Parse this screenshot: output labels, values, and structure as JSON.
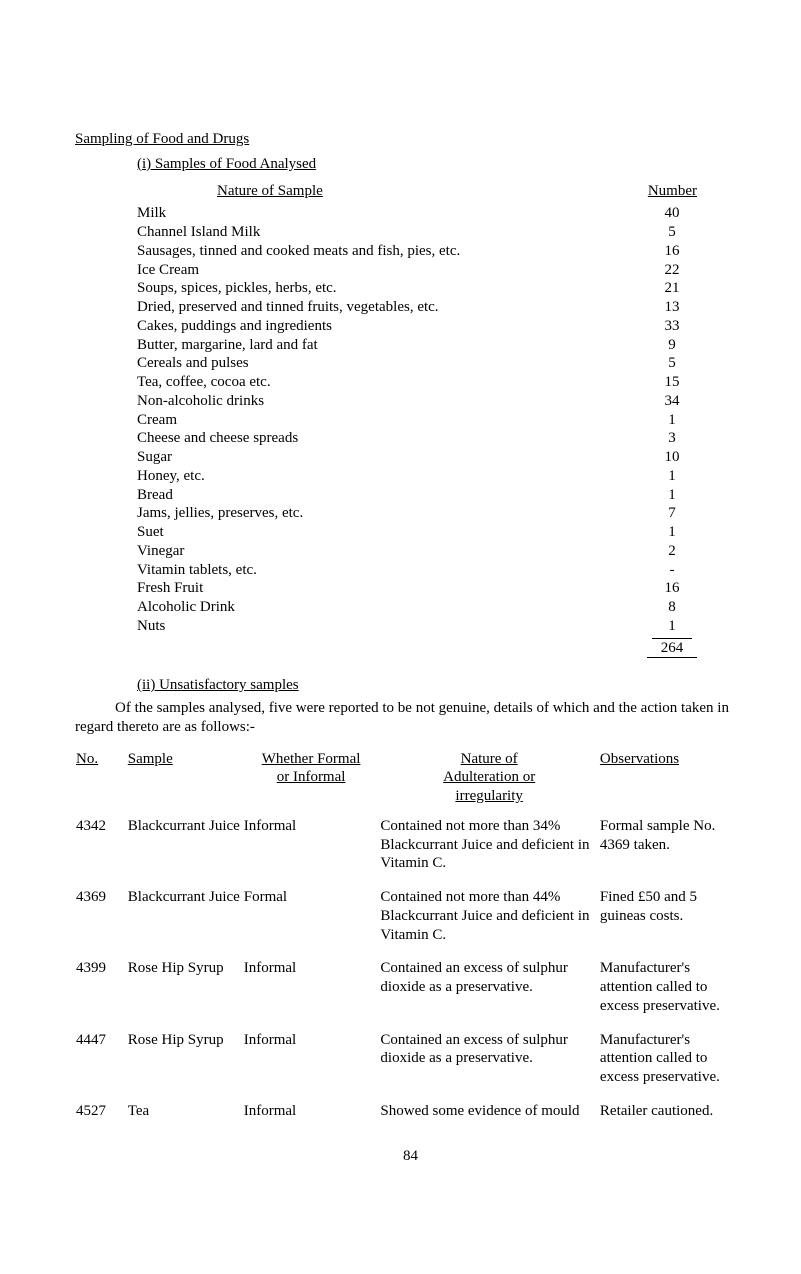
{
  "heading": "Sampling of Food and Drugs",
  "sub_i": "(i) Samples of Food Analysed",
  "table1_headers": {
    "nature": "Nature of Sample",
    "number": "Number"
  },
  "samples": [
    {
      "name": "Milk",
      "number": "40"
    },
    {
      "name": "Channel Island Milk",
      "number": "5"
    },
    {
      "name": "Sausages, tinned and cooked meats and fish, pies, etc.",
      "number": "16"
    },
    {
      "name": "Ice Cream",
      "number": "22"
    },
    {
      "name": "Soups, spices, pickles, herbs, etc.",
      "number": "21"
    },
    {
      "name": "Dried, preserved and tinned fruits, vegetables, etc.",
      "number": "13"
    },
    {
      "name": "Cakes, puddings and ingredients",
      "number": "33"
    },
    {
      "name": "Butter, margarine, lard and fat",
      "number": "9"
    },
    {
      "name": "Cereals and pulses",
      "number": "5"
    },
    {
      "name": "Tea, coffee, cocoa etc.",
      "number": "15"
    },
    {
      "name": "Non-alcoholic drinks",
      "number": "34"
    },
    {
      "name": "Cream",
      "number": "1"
    },
    {
      "name": "Cheese and cheese spreads",
      "number": "3"
    },
    {
      "name": "Sugar",
      "number": "10"
    },
    {
      "name": "Honey, etc.",
      "number": "1"
    },
    {
      "name": "Bread",
      "number": "1"
    },
    {
      "name": "Jams, jellies, preserves, etc.",
      "number": "7"
    },
    {
      "name": "Suet",
      "number": "1"
    },
    {
      "name": "Vinegar",
      "number": "2"
    },
    {
      "name": "Vitamin tablets, etc.",
      "number": "-"
    },
    {
      "name": "Fresh Fruit",
      "number": "16"
    },
    {
      "name": "Alcoholic Drink",
      "number": "8"
    },
    {
      "name": "Nuts",
      "number": "1"
    }
  ],
  "total": "264",
  "sub_ii": "(ii) Unsatisfactory samples",
  "body_text": "Of the samples analysed, five were reported to be not genuine, details of which and the action taken in regard thereto are as follows:-",
  "table2_headers": {
    "no": "No.",
    "sample": "Sample",
    "formal_l1": "Whether Formal",
    "formal_l2": "or Informal",
    "nature_l1": "Nature of",
    "nature_l2": "Adulteration or",
    "nature_l3": "irregularity",
    "obs": "Observations"
  },
  "details": [
    {
      "no": "4342",
      "sample": "Blackcurrant Juice",
      "formal": "Informal",
      "nature": "Contained not more than 34% Blackcurrant Juice and deficient in Vitamin C.",
      "obs": "Formal sample No. 4369 taken."
    },
    {
      "no": "4369",
      "sample": "Blackcurrant Juice",
      "formal": "Formal",
      "nature": "Contained not more than 44% Blackcurrant Juice and deficient in Vitamin C.",
      "obs": "Fined £50 and 5 guineas costs."
    },
    {
      "no": "4399",
      "sample": "Rose Hip Syrup",
      "formal": "Informal",
      "nature": "Contained an excess of sulphur dioxide as a preservative.",
      "obs": "Manufacturer's attention called to excess preservative."
    },
    {
      "no": "4447",
      "sample": "Rose Hip Syrup",
      "formal": "Informal",
      "nature": "Contained an excess of sulphur dioxide as a preservative.",
      "obs": "Manufacturer's attention called to excess preservative."
    },
    {
      "no": "4527",
      "sample": "Tea",
      "formal": "Informal",
      "nature": "Showed some evidence of mould",
      "obs": "Retailer cautioned."
    }
  ],
  "page_number": "84"
}
